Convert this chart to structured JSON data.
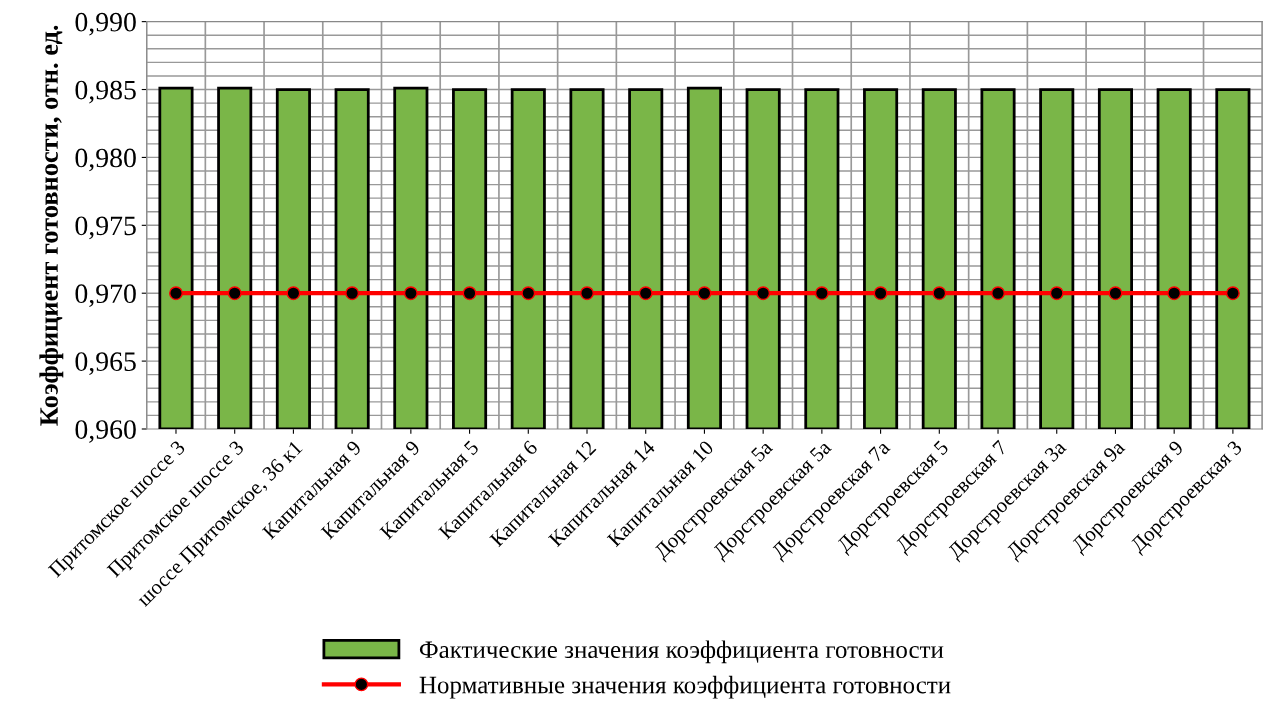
{
  "chart_data": {
    "type": "bar",
    "ylabel": "Коэффициент готовности, отн. ед.",
    "categories": [
      "Притомское шоссе 3",
      "Притомское шоссе 3",
      "шоссе Притомское, 36 к1",
      "Капитальная 9",
      "Капитальная 9",
      "Капитальная 5",
      "Капитальная 6",
      "Капитальная 12",
      "Капитальная 14",
      "Капитальная 10",
      "Дорстроевская 5а",
      "Дорстроевская 5а",
      "Дорстроевская 7а",
      "Дорстроевская 5",
      "Дорстроевская 7",
      "Дорстроевская 3а",
      "Дорстроевская 9а",
      "Дорстроевская 9",
      "Дорстроевская 3"
    ],
    "series": [
      {
        "name": "Фактические значения коэффициента готовности",
        "color": "#7ab648",
        "values": [
          0.9851,
          0.9851,
          0.985,
          0.985,
          0.9851,
          0.985,
          0.985,
          0.985,
          0.985,
          0.9851,
          0.985,
          0.985,
          0.985,
          0.985,
          0.985,
          0.985,
          0.985,
          0.985,
          0.985
        ]
      },
      {
        "name": "Нормативные значения коэффициента готовности",
        "type": "line",
        "color": "#ff0000",
        "marker": "circle",
        "line_style": "solid",
        "values": [
          0.97,
          0.97,
          0.97,
          0.97,
          0.97,
          0.97,
          0.97,
          0.97,
          0.97,
          0.97,
          0.97,
          0.97,
          0.97,
          0.97,
          0.97,
          0.97,
          0.97,
          0.97,
          0.97
        ]
      }
    ],
    "ylim": [
      0.96,
      0.99
    ],
    "yticks": [
      {
        "value": 0.96,
        "label": "0,960"
      },
      {
        "value": 0.965,
        "label": "0,965"
      },
      {
        "value": 0.97,
        "label": "0,970"
      },
      {
        "value": 0.975,
        "label": "0,975"
      },
      {
        "value": 0.98,
        "label": "0,980"
      },
      {
        "value": 0.985,
        "label": "0,985"
      },
      {
        "value": 0.99,
        "label": "0,990"
      }
    ],
    "grid": true,
    "legend": "bottom"
  }
}
